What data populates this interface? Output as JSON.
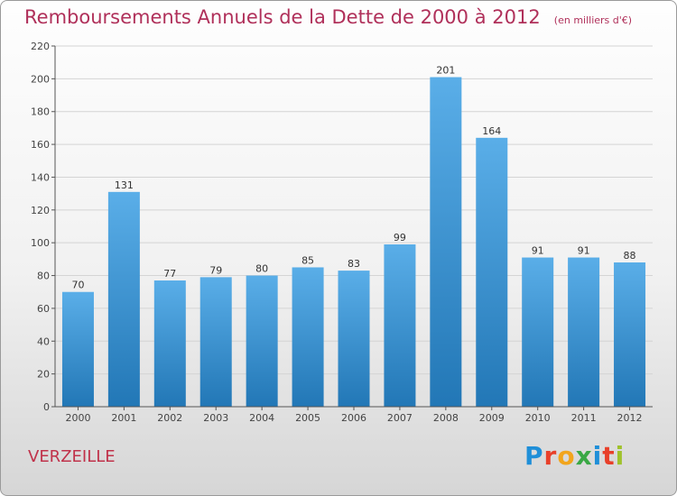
{
  "commune": "VERZEILLE",
  "logo": [
    "P",
    "r",
    "o",
    "x",
    "i",
    "t",
    "i"
  ],
  "colors": {
    "title": "#b0305a",
    "commune": "#c0324a",
    "bar_top": "#5aaee8",
    "bar_bottom": "#2277b6",
    "axis": "#555555",
    "grid": "#d4d4d4"
  },
  "chart_data": {
    "type": "bar",
    "title": "Remboursements Annuels de la Dette de 2000 à 2012",
    "unit": "(en milliers d'€)",
    "xlabel": "",
    "ylabel": "",
    "categories": [
      "2000",
      "2001",
      "2002",
      "2003",
      "2004",
      "2005",
      "2006",
      "2007",
      "2008",
      "2009",
      "2010",
      "2011",
      "2012"
    ],
    "values": [
      70,
      131,
      77,
      79,
      80,
      85,
      83,
      99,
      201,
      164,
      91,
      91,
      88
    ],
    "ylim": [
      0,
      220
    ],
    "yticks": [
      0,
      20,
      40,
      60,
      80,
      100,
      120,
      140,
      160,
      180,
      200,
      220
    ],
    "grid": true,
    "legend": "none"
  }
}
